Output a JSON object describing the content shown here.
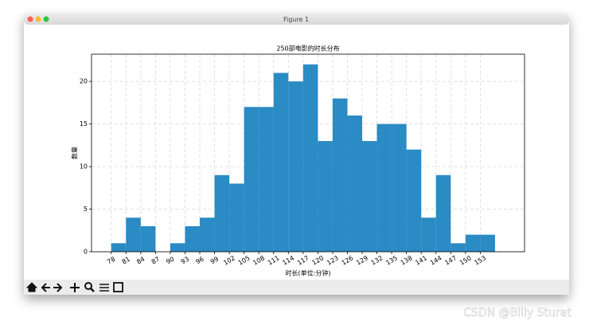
{
  "window": {
    "title": "Figure 1"
  },
  "watermark": "CSDN @Billy Sturat",
  "chart_data": {
    "type": "histogram",
    "title": "250部电影的时长分布",
    "x_label": "时长(单位:分钟)",
    "y_label": "数量",
    "bins": [
      78,
      81,
      84,
      87,
      90,
      93,
      96,
      99,
      102,
      105,
      108,
      111,
      114,
      117,
      120,
      123,
      126,
      129,
      132,
      135,
      138,
      141,
      144,
      147,
      150,
      153,
      156
    ],
    "counts": [
      1,
      4,
      3,
      0,
      1,
      3,
      4,
      9,
      8,
      17,
      17,
      21,
      20,
      22,
      13,
      18,
      16,
      13,
      15,
      15,
      12,
      4,
      9,
      1,
      2,
      2
    ],
    "color": "#2a8bc5",
    "xlim": [
      74,
      162
    ],
    "xticks": [
      78,
      81,
      84,
      87,
      90,
      93,
      96,
      99,
      102,
      105,
      108,
      111,
      114,
      117,
      120,
      123,
      126,
      129,
      132,
      135,
      138,
      141,
      144,
      147,
      150,
      153
    ],
    "ylim": [
      0,
      23.2
    ],
    "yticks": [
      0,
      5,
      10,
      15,
      20
    ],
    "grid": true
  }
}
